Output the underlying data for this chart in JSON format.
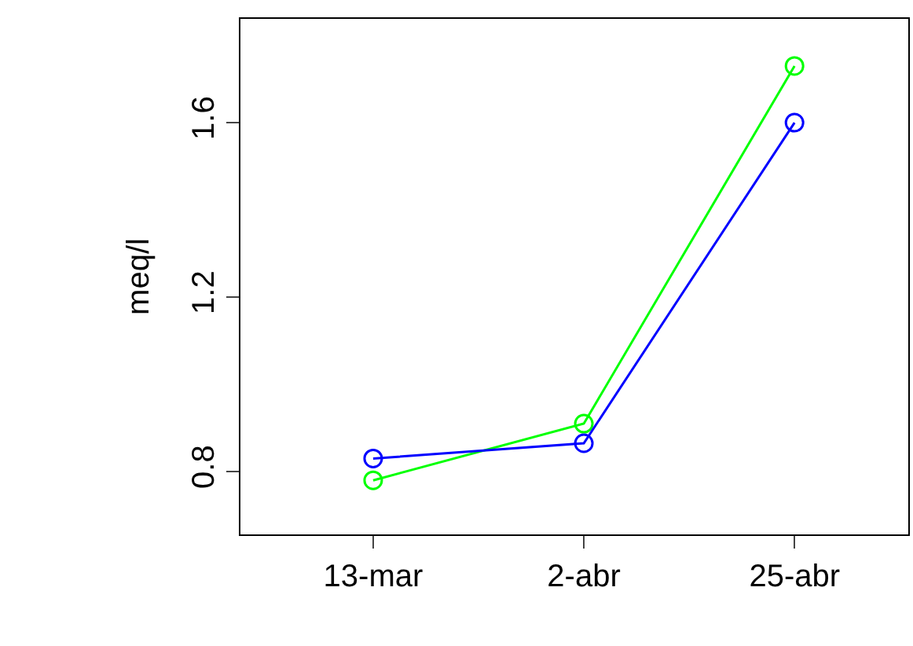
{
  "chart_data": {
    "type": "line",
    "ylabel": "meq/l",
    "categories": [
      "13-mar",
      "2-abr",
      "25-abr"
    ],
    "series": [
      {
        "color": "#00ff00",
        "values": [
          0.78,
          0.91,
          1.73
        ]
      },
      {
        "color": "#0000ff",
        "values": [
          0.83,
          0.865,
          1.6
        ]
      }
    ],
    "ylim": [
      0.656,
      1.838
    ],
    "yticks": [
      {
        "value": 0.8,
        "label": "0.8"
      },
      {
        "value": 1.2,
        "label": "1.2"
      },
      {
        "value": 1.6,
        "label": "1.6"
      }
    ],
    "marker": "circle",
    "line_style": "solid"
  }
}
